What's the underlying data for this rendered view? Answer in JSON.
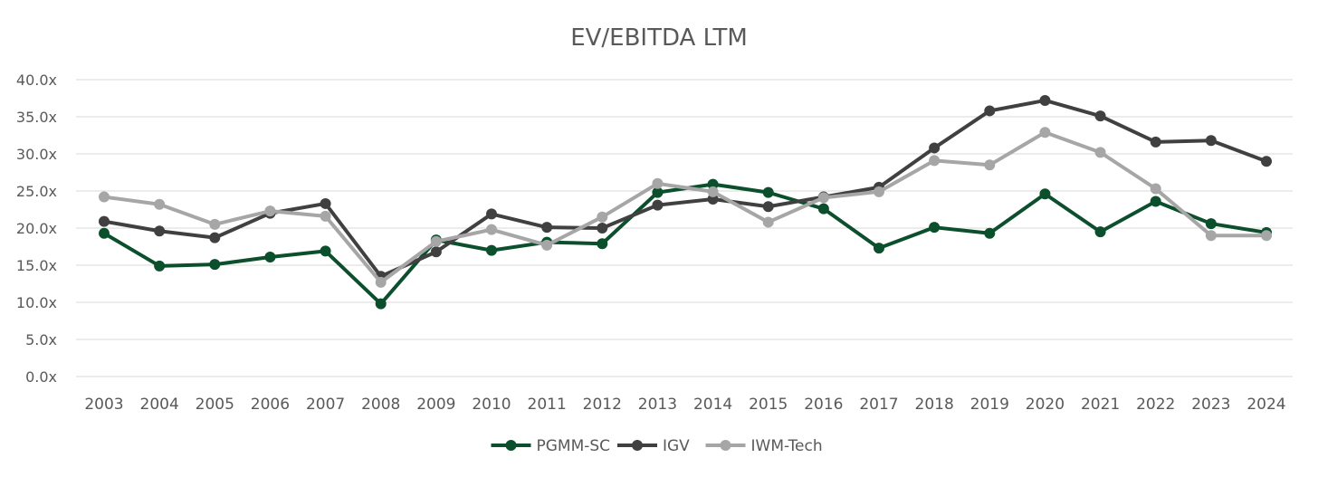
{
  "chart_data": {
    "type": "line",
    "title": "EV/EBITDA LTM",
    "xlabel": "",
    "ylabel": "",
    "ylim": [
      0,
      40
    ],
    "y_ticks": [
      "0.0x",
      "5.0x",
      "10.0x",
      "15.0x",
      "20.0x",
      "25.0x",
      "30.0x",
      "35.0x",
      "40.0x"
    ],
    "grid": true,
    "legend_position": "bottom-center",
    "categories": [
      "2003",
      "2004",
      "2005",
      "2006",
      "2007",
      "2008",
      "2009",
      "2010",
      "2011",
      "2012",
      "2013",
      "2014",
      "2015",
      "2016",
      "2017",
      "2018",
      "2019",
      "2020",
      "2021",
      "2022",
      "2023",
      "2024"
    ],
    "series": [
      {
        "name": "PGMM-SC",
        "color": "#0b4f2c",
        "values": [
          19.3,
          14.9,
          15.1,
          16.1,
          16.9,
          9.8,
          18.4,
          17.0,
          18.1,
          17.9,
          24.8,
          25.9,
          24.8,
          22.6,
          17.3,
          20.1,
          19.3,
          24.6,
          19.5,
          23.6,
          20.6,
          19.4
        ]
      },
      {
        "name": "IGV",
        "color": "#404040",
        "values": [
          20.9,
          19.6,
          18.7,
          22.0,
          23.3,
          13.5,
          16.8,
          21.9,
          20.1,
          20.0,
          23.1,
          23.9,
          22.9,
          24.2,
          25.5,
          30.8,
          35.8,
          37.2,
          35.1,
          31.6,
          31.8,
          29.0
        ]
      },
      {
        "name": "IWM-Tech",
        "color": "#a6a6a6",
        "values": [
          24.2,
          23.2,
          20.5,
          22.3,
          21.6,
          12.7,
          18.2,
          19.8,
          17.7,
          21.5,
          26.0,
          24.9,
          20.8,
          24.1,
          24.9,
          29.1,
          28.5,
          32.9,
          30.2,
          25.3,
          19.0,
          19.0
        ]
      }
    ]
  }
}
